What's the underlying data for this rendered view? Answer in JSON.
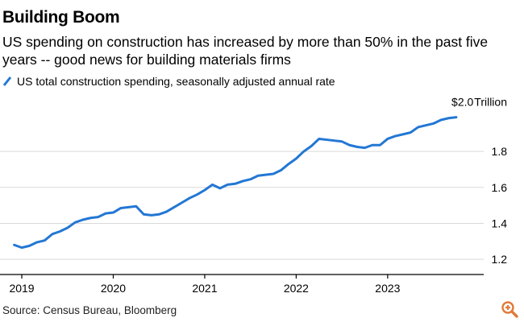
{
  "header": {
    "title": "Building Boom",
    "subtitle": "US spending on construction has increased by more than 50% in the past five years -- good news for building materials firms"
  },
  "legend": {
    "label": "US total construction spending, seasonally adjusted annual rate"
  },
  "footer": {
    "source": "Source: Census Bureau, Bloomberg"
  },
  "colors": {
    "series": "#2377d4",
    "grid": "#d9d9d9",
    "axis": "#000000",
    "zoom_icon": "#e07a3a"
  },
  "icons": {
    "zoom": "zoom-icon"
  },
  "chart_data": {
    "type": "line",
    "title": "Building Boom",
    "xlabel": "",
    "ylabel": "",
    "ylim": [
      1.12,
      2.06
    ],
    "xlim": [
      2018.85,
      2024.05
    ],
    "yticks": [
      1.2,
      1.4,
      1.6,
      1.8
    ],
    "ytick_labels": [
      "1.2",
      "1.4",
      "1.6",
      "1.8"
    ],
    "xticks": [
      2019,
      2020,
      2021,
      2022,
      2023
    ],
    "xtick_labels": [
      "2019",
      "2020",
      "2021",
      "2022",
      "2023"
    ],
    "end_label": {
      "prefix": "$",
      "value": "2.0",
      "unit": "Trillion"
    },
    "series": [
      {
        "name": "US total construction spending, seasonally adjusted annual rate",
        "x": [
          2018.917,
          2019.0,
          2019.083,
          2019.167,
          2019.25,
          2019.333,
          2019.417,
          2019.5,
          2019.583,
          2019.667,
          2019.75,
          2019.833,
          2019.917,
          2020.0,
          2020.083,
          2020.167,
          2020.25,
          2020.333,
          2020.417,
          2020.5,
          2020.583,
          2020.667,
          2020.75,
          2020.833,
          2020.917,
          2021.0,
          2021.083,
          2021.167,
          2021.25,
          2021.333,
          2021.417,
          2021.5,
          2021.583,
          2021.667,
          2021.75,
          2021.833,
          2021.917,
          2022.0,
          2022.083,
          2022.167,
          2022.25,
          2022.333,
          2022.417,
          2022.5,
          2022.583,
          2022.667,
          2022.75,
          2022.833,
          2022.917,
          2023.0,
          2023.083,
          2023.167,
          2023.25,
          2023.333,
          2023.417,
          2023.5,
          2023.583,
          2023.667,
          2023.75
        ],
        "values": [
          1.28,
          1.265,
          1.275,
          1.295,
          1.305,
          1.34,
          1.355,
          1.375,
          1.405,
          1.42,
          1.43,
          1.435,
          1.455,
          1.46,
          1.485,
          1.49,
          1.495,
          1.45,
          1.445,
          1.45,
          1.465,
          1.49,
          1.515,
          1.54,
          1.56,
          1.585,
          1.615,
          1.595,
          1.615,
          1.62,
          1.635,
          1.645,
          1.665,
          1.67,
          1.675,
          1.695,
          1.73,
          1.76,
          1.8,
          1.83,
          1.87,
          1.865,
          1.86,
          1.855,
          1.835,
          1.825,
          1.82,
          1.835,
          1.835,
          1.87,
          1.885,
          1.895,
          1.905,
          1.935,
          1.945,
          1.955,
          1.975,
          1.985,
          1.99
        ]
      }
    ]
  }
}
